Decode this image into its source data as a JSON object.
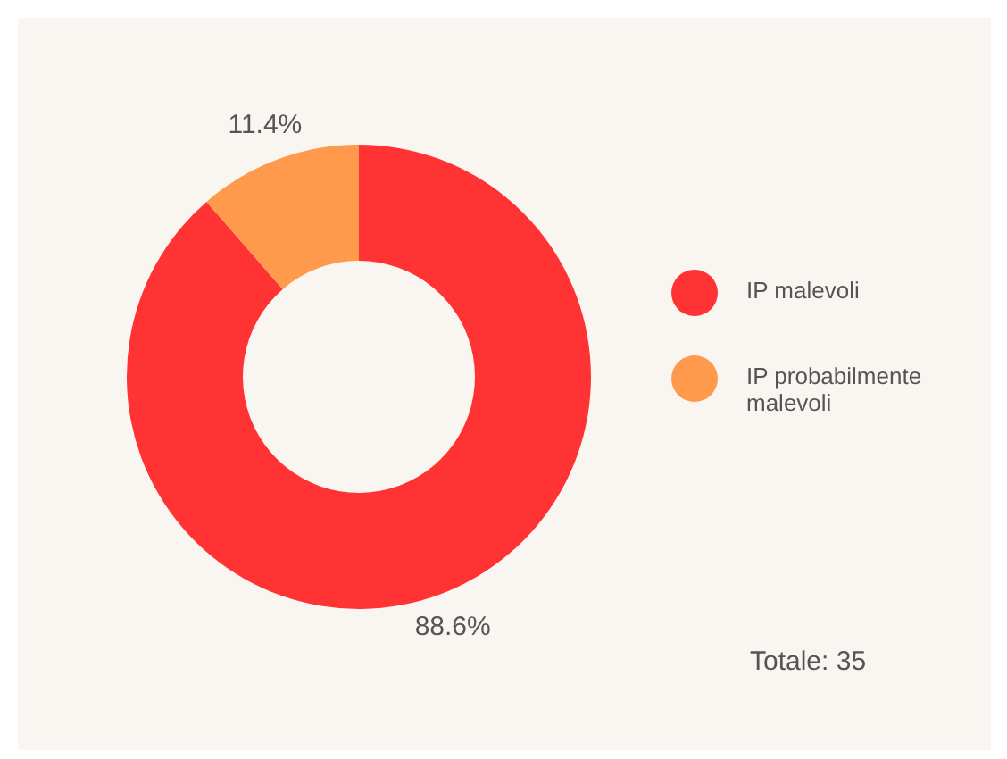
{
  "chart_data": {
    "type": "donut",
    "categories": [
      "IP malevoli",
      "IP probabilmente malevoli"
    ],
    "values": [
      88.6,
      11.4
    ],
    "colors": [
      "#ff3333",
      "#ff9a4d"
    ],
    "value_labels": [
      "88.6%",
      "11.4%"
    ],
    "legend": "right",
    "annotations": [
      "Totale: 35"
    ]
  }
}
